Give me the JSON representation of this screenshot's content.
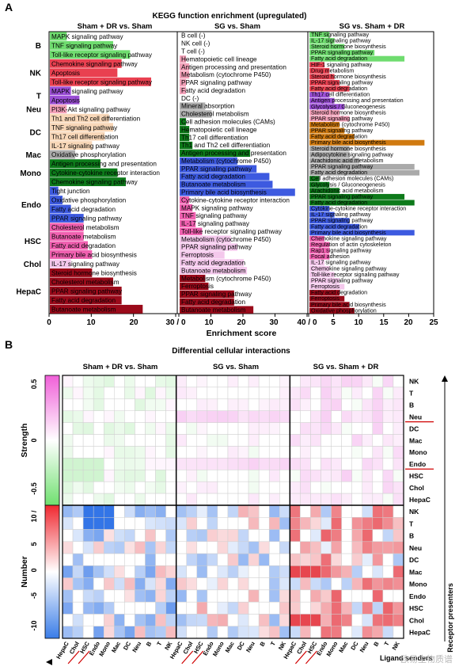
{
  "panel_a": {
    "letter": "A",
    "title": "KEGG function enrichment (upregulated)",
    "xlabel": "Enrichment score",
    "sub_titles": [
      "Sham + DR vs. Sham",
      "SG vs. Sham",
      "SG vs. Sham + DR"
    ],
    "axis_ticks": [
      "0",
      "10",
      "20",
      "30 / 0",
      "10",
      "20",
      "30",
      "40 / 0",
      "5",
      "10",
      "15",
      "20",
      "25"
    ]
  },
  "panel_b": {
    "letter": "B",
    "title": "Differential cellular interactions",
    "sub_titles": [
      "Sham + DR vs. Sham",
      "SG vs. Sham",
      "SG vs. Sham + DR"
    ],
    "strength_label": "Strength",
    "number_label": "Number",
    "strength_ticks": [
      "0.5",
      "0",
      "-0.5"
    ],
    "number_ticks": [
      "10 /",
      "5",
      "0",
      "-5",
      "-10"
    ],
    "receptor_label": "Receptor presenters",
    "ligand_label": "Ligand senders",
    "cell_types": [
      "NK",
      "T",
      "B",
      "Neu",
      "DC",
      "Mac",
      "Mono",
      "Endo",
      "HSC",
      "Chol",
      "HepaC"
    ],
    "sender_labels": [
      "HepaC",
      "Chol",
      "HSC",
      "Endo",
      "Mono",
      "Mac",
      "DC",
      "Neu",
      "B",
      "T",
      "NK"
    ]
  },
  "watermark": "欧易生物质谱",
  "chart_data": [
    {
      "type": "bar",
      "title": "KEGG function enrichment (upregulated)",
      "xlabel": "Enrichment score",
      "panels": [
        {
          "name": "Sham + DR vs. Sham",
          "xlim": [
            0,
            30
          ],
          "groups": [
            {
              "label": "B",
              "color": "#6fdc6f",
              "terms": [
                [
                  "MAPK signaling pathway",
                  4
                ],
                [
                  "TNF signaling pathway",
                  15
                ],
                [
                  "Toll-like receptor signaling pathway",
                  19
                ]
              ]
            },
            {
              "label": "NK",
              "color": "#e94050",
              "terms": [
                [
                  "Chemokine signaling pathway",
                  17
                ],
                [
                  "Apoptosis",
                  16
                ],
                [
                  "Toll-like receptor signaling pathway",
                  24
                ]
              ]
            },
            {
              "label": "T",
              "color": "#9b4fd6",
              "terms": [
                [
                  "MAPK signaling pathway",
                  5
                ],
                [
                  "Apoptosis",
                  7
                ]
              ]
            },
            {
              "label": "Neu",
              "color": "#f2a0b8",
              "terms": [
                [
                  "PI3K-Akt signaling pathway",
                  4
                ]
              ]
            },
            {
              "label": "DC",
              "color": "#f8d7b8",
              "terms": [
                [
                  "Th1 and Th2 cell differentiation",
                  14
                ],
                [
                  "TNF signaling pathway",
                  15
                ],
                [
                  "Th17 cell differentiation",
                  13
                ],
                [
                  "IL-17 signaling pathway",
                  10
                ]
              ]
            },
            {
              "label": "Mac",
              "color": "#aaaaaa",
              "terms": [
                [
                  "Oxidative phosphorylation",
                  6
                ]
              ]
            },
            {
              "label": "Mono",
              "color": "#0d7a1a",
              "terms": [
                [
                  "Antigen processing and presentation",
                  12
                ],
                [
                  "Cytokine-cytokine receptor interaction",
                  16
                ],
                [
                  "Chemokine signaling pathway",
                  18
                ]
              ]
            },
            {
              "label": "Endo",
              "color": "#3d5ae0",
              "terms": [
                [
                  "Tight junction",
                  2
                ],
                [
                  "Oxidative phosphorylation",
                  3
                ],
                [
                  "Fatty acid degradation",
                  5
                ],
                [
                  "PPAR signaling pathway",
                  8
                ]
              ]
            },
            {
              "label": "HSC",
              "color": "#f060b0",
              "terms": [
                [
                  "Cholesterol metabolism",
                  8
                ],
                [
                  "Butanoate metabolism",
                  8
                ],
                [
                  "Fatty acid degradation",
                  9
                ],
                [
                  "Primary bile acid biosynthesis",
                  10
                ]
              ]
            },
            {
              "label": "Chol",
              "color": "#f4c8ec",
              "terms": [
                [
                  "IL-17 signaling pathway",
                  5
                ]
              ]
            },
            {
              "label": "HepaC",
              "color": "#9a0a1a",
              "terms": [
                [
                  "Steroid hormone biosynthesis",
                  10
                ],
                [
                  "Cholesterol metabolism",
                  15
                ],
                [
                  "PPAR signaling pathway",
                  17
                ],
                [
                  "Fatty acid degradation",
                  17
                ],
                [
                  "Butanoate metabolism",
                  22
                ]
              ]
            }
          ]
        },
        {
          "name": "SG vs. Sham",
          "xlim": [
            0,
            40
          ],
          "terms": [
            [
              "B cell (-)",
              0,
              "#6fdc6f"
            ],
            [
              "NK cell (-)",
              0,
              "#e94050"
            ],
            [
              "T cell (-)",
              0,
              "#9b4fd6"
            ],
            [
              "Hematopoietic cell lineage",
              2,
              "#f2a0b8"
            ],
            [
              "Antigen processing and presentation",
              3,
              "#f2a0b8"
            ],
            [
              "Metabolism (cytochrome P450)",
              3,
              "#f2a0b8"
            ],
            [
              "PPAR signaling pathway",
              2,
              "#f2a0b8"
            ],
            [
              "Fatty acid degradation",
              2,
              "#f2a0b8"
            ],
            [
              "DC (-)",
              0,
              "#f8d7b8"
            ],
            [
              "Mineral absorption",
              8,
              "#aaaaaa"
            ],
            [
              "Cholesterol metabolism",
              10,
              "#aaaaaa"
            ],
            [
              "Cell adhesion molecules (CAMs)",
              2,
              "#0d7a1a"
            ],
            [
              "Hematopoietic cell lineage",
              3,
              "#0d7a1a"
            ],
            [
              "Th17 cell differentiation",
              3,
              "#0d7a1a"
            ],
            [
              "Th1 and Th2 cell differentiation",
              4,
              "#0d7a1a"
            ],
            [
              "Antigen processing and presentation",
              22,
              "#0d7a1a"
            ],
            [
              "Metabolism (cytochrome P450)",
              18,
              "#3d5ae0"
            ],
            [
              "PPAR signaling pathway",
              24,
              "#3d5ae0"
            ],
            [
              "Fatty acid degradation",
              28,
              "#3d5ae0"
            ],
            [
              "Butanoate metabolism",
              29,
              "#3d5ae0"
            ],
            [
              "Primary bile acid biosynthesis",
              36,
              "#3d5ae0"
            ],
            [
              "Cytokine-cytokine receptor interaction",
              3,
              "#f060b0"
            ],
            [
              "MAPK signaling pathway",
              4,
              "#f060b0"
            ],
            [
              "TNF signaling pathway",
              5,
              "#f060b0"
            ],
            [
              "IL-17 signaling pathway",
              5,
              "#f060b0"
            ],
            [
              "Toll-like receptor signaling pathway",
              7,
              "#f060b0"
            ],
            [
              "Metabolism (cytochrome P450)",
              16,
              "#f4c8ec"
            ],
            [
              "PPAR signaling pathway",
              18,
              "#f4c8ec"
            ],
            [
              "Ferroptosis",
              14,
              "#f4c8ec"
            ],
            [
              "Fatty acid degradation",
              20,
              "#f4c8ec"
            ],
            [
              "Butanoate metabolism",
              21,
              "#f4c8ec"
            ],
            [
              "Metabolism (cytochrome P450)",
              8,
              "#9a0a1a"
            ],
            [
              "Ferroptosis",
              9,
              "#9a0a1a"
            ],
            [
              "PPAR signaling pathway",
              17,
              "#9a0a1a"
            ],
            [
              "Fatty acid degradation",
              17,
              "#9a0a1a"
            ],
            [
              "Butanoate metabolism",
              23,
              "#9a0a1a"
            ]
          ]
        },
        {
          "name": "SG vs. Sham + DR",
          "xlim": [
            0,
            25
          ],
          "terms": [
            [
              "TNF signaling pathway",
              4,
              "#6fdc6f"
            ],
            [
              "IL-17 signaling pathway",
              5,
              "#6fdc6f"
            ],
            [
              "Steroid hormone biosynthesis",
              7,
              "#6fdc6f"
            ],
            [
              "PPAR signaling pathway",
              13,
              "#6fdc6f"
            ],
            [
              "Fatty acid degradation",
              19,
              "#6fdc6f"
            ],
            [
              "HIF-1 signaling pathway",
              3,
              "#e94050"
            ],
            [
              "Drug metabolism",
              4,
              "#e94050"
            ],
            [
              "Steroid hormone biosynthesis",
              5,
              "#e94050"
            ],
            [
              "PPAR signaling pathway",
              6,
              "#e94050"
            ],
            [
              "Fatty acid degradation",
              8,
              "#e94050"
            ],
            [
              "Th17 cell differentiation",
              4,
              "#9b4fd6"
            ],
            [
              "Antigen processing and presentation",
              5,
              "#9b4fd6"
            ],
            [
              "Glycolysis / Gluconeogenesis",
              7,
              "#9b4fd6"
            ],
            [
              "Steroid hormone biosynthesis",
              6,
              "#f2a0b8"
            ],
            [
              "PPAR signaling pathway",
              8,
              "#f2a0b8"
            ],
            [
              "Metabolism (cytochrome P450)",
              6,
              "#d07a10"
            ],
            [
              "PPAR signaling pathway",
              7,
              "#d07a10"
            ],
            [
              "Fatty acid degradation",
              9,
              "#d07a10"
            ],
            [
              "Primary bile acid biosynthesis",
              23,
              "#d07a10"
            ],
            [
              "Steroid hormone biosynthesis",
              8,
              "#aaaaaa"
            ],
            [
              "Adipocytokine signaling pathway",
              8,
              "#aaaaaa"
            ],
            [
              "Arachidonic acid metabolism",
              10,
              "#aaaaaa"
            ],
            [
              "PPAR signaling pathway",
              21,
              "#aaaaaa"
            ],
            [
              "Fatty acid degradation",
              22,
              "#aaaaaa"
            ],
            [
              "Cell adhesion molecules (CAMs)",
              2,
              "#0d7a1a"
            ],
            [
              "Glycolysis / Gluconeogenesis",
              4,
              "#0d7a1a"
            ],
            [
              "Arachidonic acid metabolism",
              6,
              "#0d7a1a"
            ],
            [
              "PPAR signaling pathway",
              19,
              "#0d7a1a"
            ],
            [
              "Fatty acid degradation",
              21,
              "#0d7a1a"
            ],
            [
              "Cytokine-cytokine receptor interaction",
              4,
              "#3d5ae0"
            ],
            [
              "IL-17 signaling pathway",
              5,
              "#3d5ae0"
            ],
            [
              "PPAR signaling pathway",
              8,
              "#3d5ae0"
            ],
            [
              "Fatty acid degradation",
              10,
              "#3d5ae0"
            ],
            [
              "Primary bile acid biosynthesis",
              21,
              "#3d5ae0"
            ],
            [
              "Chemokine signaling pathway",
              3,
              "#f060b0"
            ],
            [
              "Regulation of actin cytoskeleton",
              4,
              "#f060b0"
            ],
            [
              "Rap1 signaling pathway",
              4,
              "#f060b0"
            ],
            [
              "Focal adhesion",
              4,
              "#f060b0"
            ],
            [
              "IL-17 signaling pathway",
              3,
              "#f4c8ec"
            ],
            [
              "Chemokine signaling pathway",
              4,
              "#f4c8ec"
            ],
            [
              "Toll-like receptor signaling pathway",
              5,
              "#f4c8ec"
            ],
            [
              "PPAR signaling pathway",
              6,
              "#f4c8ec"
            ],
            [
              "Ferroptosis",
              7,
              "#f4c8ec"
            ],
            [
              "Fatty acid degradation",
              6,
              "#9a0a1a"
            ],
            [
              "Ferroptosis",
              7,
              "#9a0a1a"
            ],
            [
              "Primary bile acid biosynthesis",
              8,
              "#9a0a1a"
            ],
            [
              "Oxidative phosphorylation",
              9,
              "#9a0a1a"
            ]
          ]
        }
      ]
    },
    {
      "type": "heatmap",
      "title": "Differential cellular interactions",
      "x_groups": [
        "Sham + DR vs. Sham",
        "SG vs. Sham",
        "SG vs. Sham + DR"
      ],
      "senders": [
        "HepaC",
        "Chol",
        "HSC",
        "Endo",
        "Mono",
        "Mac",
        "DC",
        "Neu",
        "B",
        "T",
        "NK"
      ],
      "receivers": [
        "NK",
        "T",
        "B",
        "Neu",
        "DC",
        "Mac",
        "Mono",
        "Endo",
        "HSC",
        "Chol",
        "HepaC"
      ],
      "strength_range": [
        -0.5,
        0.5
      ],
      "number_range": [
        -10,
        10
      ]
    }
  ]
}
